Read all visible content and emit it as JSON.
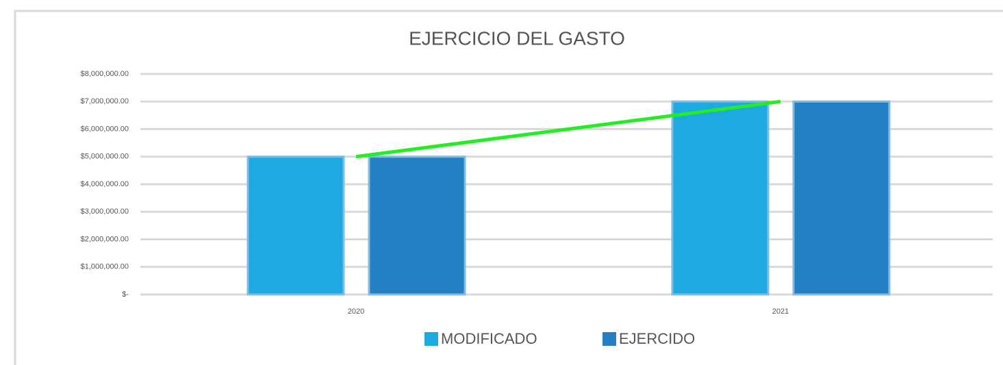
{
  "chart_data": {
    "type": "bar",
    "title": "EJERCICIO DEL GASTO",
    "categories": [
      "2020",
      "2021"
    ],
    "series": [
      {
        "name": "MODIFICADO",
        "color": "#1ea9e1",
        "values": [
          5000000,
          7000000
        ]
      },
      {
        "name": "EJERCIDO",
        "color": "#2580c3",
        "values": [
          5000000,
          7000000
        ]
      }
    ],
    "ylim": [
      0,
      8000000
    ],
    "yticks": [
      {
        "value": 0,
        "label": "$-"
      },
      {
        "value": 1000000,
        "label": "$1,000,000.00"
      },
      {
        "value": 2000000,
        "label": "$2,000,000.00"
      },
      {
        "value": 3000000,
        "label": "$3,000,000.00"
      },
      {
        "value": 4000000,
        "label": "$4,000,000.00"
      },
      {
        "value": 5000000,
        "label": "$5,000,000.00"
      },
      {
        "value": 6000000,
        "label": "$6,000,000.00"
      },
      {
        "value": 7000000,
        "label": "$7,000,000.00"
      },
      {
        "value": 8000000,
        "label": "$8,000,000.00"
      }
    ],
    "grid": true,
    "trendline_color": "#22ee22",
    "legend": "bottom"
  }
}
